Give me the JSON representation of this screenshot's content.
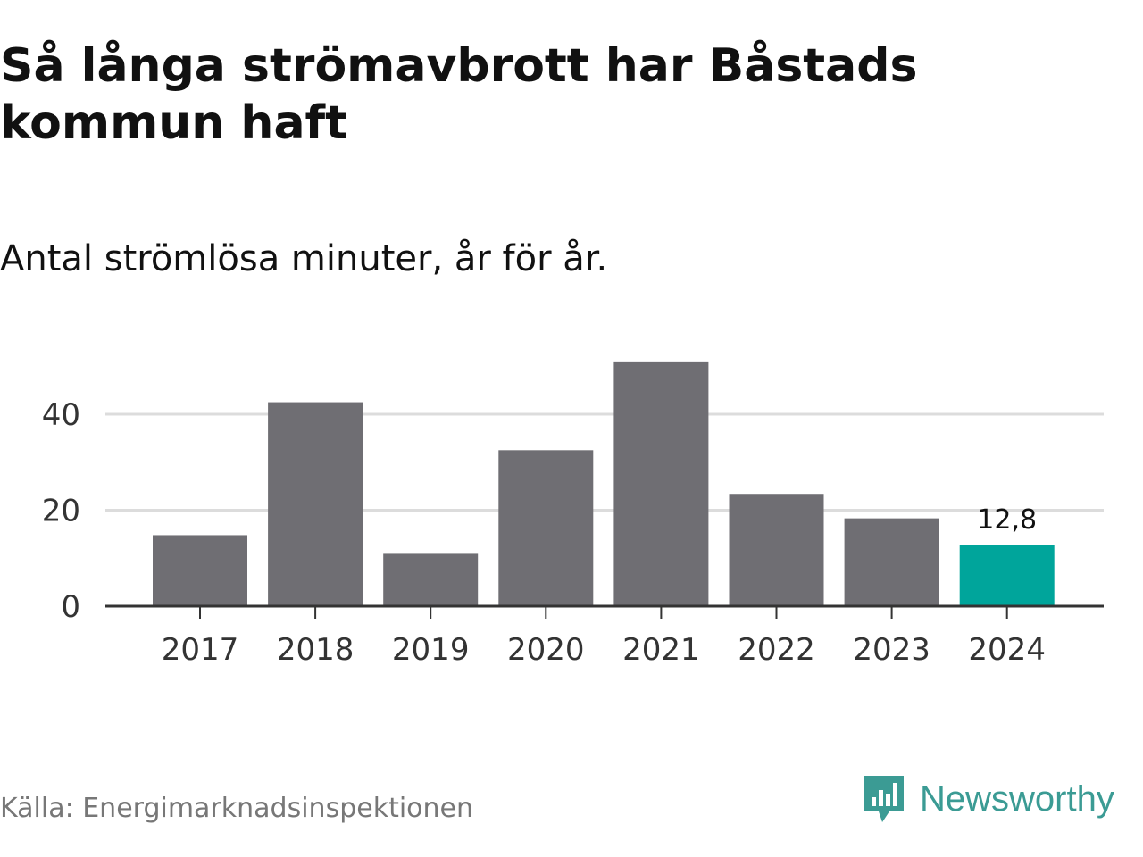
{
  "title": "Så långa strömavbrott har Båstads kommun haft",
  "subtitle": "Antal strömlösa minuter, år för år.",
  "source": "Källa: Energimarknadsinspektionen",
  "brand": "Newsworthy",
  "colors": {
    "bar": "#6f6e73",
    "highlight": "#00a59b",
    "grid": "#dcdcdc",
    "axis": "#333333",
    "brand": "#3b9b94"
  },
  "chart_data": {
    "type": "bar",
    "categories": [
      "2017",
      "2018",
      "2019",
      "2020",
      "2021",
      "2022",
      "2023",
      "2024"
    ],
    "values": [
      14.8,
      42.5,
      10.9,
      32.5,
      51.0,
      23.4,
      18.3,
      12.8
    ],
    "highlight_index": 7,
    "data_labels": [
      {
        "index": 7,
        "text": "12,8"
      }
    ],
    "yticks": [
      0,
      20,
      40
    ],
    "ylim": [
      0,
      55
    ],
    "xlabel": "",
    "ylabel": "",
    "grid": true,
    "legend": "none"
  }
}
